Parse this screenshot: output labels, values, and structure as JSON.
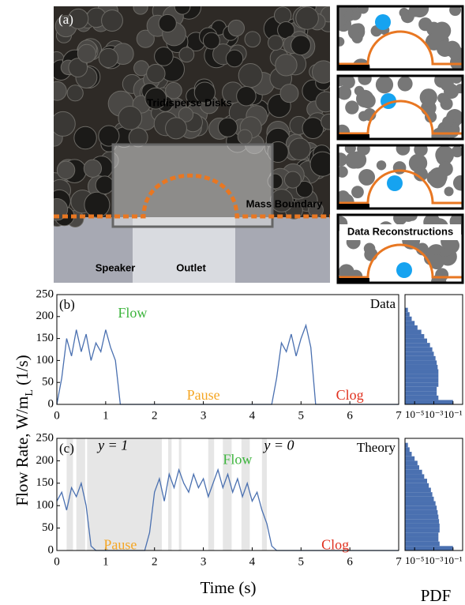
{
  "panel_a": {
    "label": "(a)",
    "labels": [
      "Tridisperse Disks",
      "Mass Boundary",
      "Speaker",
      "Outlet",
      "Data Reconstructions"
    ]
  },
  "y_label": {
    "main": "Flow Rate, W/m",
    "sub": "L",
    "unit": " (1/s)"
  },
  "x_label": "Time (s)",
  "pdf_label": "PDF",
  "chart_data": [
    {
      "type": "line",
      "panel_label": "(b)",
      "corner_label": "Data",
      "annotations": [
        {
          "text": "Flow",
          "color": "#3cb43c"
        },
        {
          "text": "Pause",
          "color": "#f5a623"
        },
        {
          "text": "Clog",
          "color": "#e0301e"
        }
      ],
      "x": [
        0,
        0.1,
        0.2,
        0.3,
        0.4,
        0.5,
        0.6,
        0.7,
        0.8,
        0.9,
        1,
        1.1,
        1.2,
        1.3,
        1.4,
        1.5,
        1.6,
        1.7,
        1.8,
        1.9,
        2,
        2.1,
        2.2,
        2.3,
        2.4,
        2.5,
        2.6,
        2.7,
        2.8,
        2.9,
        3,
        3.1,
        3.2,
        3.3,
        3.4,
        3.5,
        3.6,
        3.7,
        3.8,
        3.9,
        4,
        4.1,
        4.2,
        4.3,
        4.4,
        4.5,
        4.6,
        4.7,
        4.8,
        4.9,
        5,
        5.1,
        5.2,
        5.3,
        5.4,
        5.5,
        5.6,
        5.7,
        5.8,
        5.9,
        6,
        6.1,
        6.2,
        6.3,
        6.4,
        6.5,
        6.6,
        6.7,
        6.8,
        6.9,
        7
      ],
      "series": [
        {
          "color": "#4a70b0",
          "values": [
            0,
            60,
            150,
            110,
            170,
            120,
            160,
            100,
            140,
            120,
            170,
            130,
            100,
            0,
            0,
            0,
            0,
            0,
            0,
            0,
            0,
            0,
            0,
            0,
            0,
            0,
            0,
            0,
            0,
            0,
            0,
            0,
            0,
            0,
            0,
            0,
            0,
            0,
            0,
            0,
            0,
            0,
            0,
            0,
            0,
            60,
            140,
            120,
            160,
            110,
            150,
            180,
            130,
            0,
            0,
            0,
            0,
            0,
            0,
            0,
            0,
            0,
            0,
            0,
            0,
            0,
            0,
            0,
            0,
            0,
            0
          ]
        }
      ],
      "xlim": [
        0,
        7
      ],
      "ylim": [
        0,
        250
      ],
      "xticks": [
        0,
        1,
        2,
        3,
        4,
        5,
        6,
        7
      ],
      "yticks": [
        0,
        50,
        100,
        150,
        200,
        250
      ]
    },
    {
      "type": "line",
      "panel_label": "(c)",
      "corner_label": "Theory",
      "annotations": [
        {
          "text": "Flow",
          "color": "#3cb43c"
        },
        {
          "text": "Pause",
          "color": "#f5a623"
        },
        {
          "text": "Clog",
          "color": "#e0301e"
        },
        {
          "text": "y = 1",
          "color": "#000000"
        },
        {
          "text": "y = 0",
          "color": "#000000"
        }
      ],
      "shaded_spans": [
        [
          0.2,
          0.33
        ],
        [
          0.4,
          0.58
        ],
        [
          0.62,
          2.15
        ],
        [
          2.28,
          2.35
        ],
        [
          2.5,
          2.55
        ],
        [
          3.1,
          3.22
        ],
        [
          3.4,
          3.58
        ],
        [
          3.78,
          3.95
        ],
        [
          4.2,
          4.3
        ]
      ],
      "x": [
        0,
        0.1,
        0.2,
        0.3,
        0.4,
        0.5,
        0.6,
        0.7,
        0.8,
        0.9,
        1,
        1.1,
        1.2,
        1.3,
        1.4,
        1.5,
        1.6,
        1.7,
        1.8,
        1.9,
        2,
        2.1,
        2.2,
        2.3,
        2.4,
        2.5,
        2.6,
        2.7,
        2.8,
        2.9,
        3,
        3.1,
        3.2,
        3.3,
        3.4,
        3.5,
        3.6,
        3.7,
        3.8,
        3.9,
        4,
        4.1,
        4.2,
        4.3,
        4.4,
        4.5,
        4.6,
        4.7,
        4.8,
        4.9,
        5,
        5.1,
        5.2,
        5.3,
        5.4,
        5.5,
        5.6,
        5.7,
        5.8,
        5.9,
        6,
        6.1,
        6.2,
        6.3,
        6.4,
        6.5,
        6.6,
        6.7,
        6.8,
        6.9,
        7
      ],
      "series": [
        {
          "color": "#4a70b0",
          "values": [
            110,
            130,
            90,
            140,
            120,
            150,
            100,
            10,
            0,
            0,
            0,
            0,
            0,
            0,
            0,
            0,
            0,
            0,
            0,
            40,
            130,
            160,
            110,
            170,
            140,
            180,
            150,
            130,
            170,
            140,
            160,
            120,
            150,
            180,
            140,
            170,
            130,
            160,
            120,
            150,
            110,
            130,
            90,
            60,
            10,
            0,
            0,
            0,
            0,
            0,
            0,
            0,
            0,
            0,
            0,
            0,
            0,
            0,
            0,
            0,
            0,
            0,
            0,
            0,
            0,
            0,
            0,
            0,
            0,
            0,
            0
          ]
        }
      ],
      "xlim": [
        0,
        7
      ],
      "ylim": [
        0,
        250
      ],
      "xticks": [
        0,
        1,
        2,
        3,
        4,
        5,
        6,
        7
      ],
      "yticks": [
        0,
        50,
        100,
        150,
        200,
        250
      ]
    },
    {
      "type": "histogram",
      "color": "#4a70b0",
      "log_x": true,
      "bins": [
        0,
        10,
        20,
        30,
        40,
        50,
        60,
        70,
        80,
        90,
        100,
        110,
        120,
        130,
        140,
        150,
        160,
        170,
        180,
        190,
        200,
        210,
        220,
        230,
        240,
        250
      ],
      "values": [
        0.1,
        0.003,
        0.002,
        0.002,
        0.003,
        0.003,
        0.003,
        0.003,
        0.0025,
        0.002,
        0.0015,
        0.001,
        0.0007,
        0.0004,
        0.0002,
        0.0001,
        5e-05,
        2e-05,
        1e-05,
        5e-06,
        3e-06,
        2e-06,
        null,
        null,
        null
      ],
      "xlim": [
        1e-06,
        1
      ],
      "ylim": [
        0,
        250
      ],
      "xticks": [
        {
          "value": 1e-05,
          "label": "10⁻⁵"
        },
        {
          "value": 0.001,
          "label": "10⁻³"
        },
        {
          "value": 0.1,
          "label": "10⁻¹"
        }
      ]
    },
    {
      "type": "histogram",
      "color": "#4a70b0",
      "log_x": true,
      "bins": [
        0,
        10,
        20,
        30,
        40,
        50,
        60,
        70,
        80,
        90,
        100,
        110,
        120,
        130,
        140,
        150,
        160,
        170,
        180,
        190,
        200,
        210,
        220,
        230,
        240,
        250
      ],
      "values": [
        0.1,
        0.004,
        0.003,
        0.003,
        0.004,
        0.004,
        0.0035,
        0.003,
        0.0025,
        0.002,
        0.0015,
        0.001,
        0.0007,
        0.0005,
        0.0003,
        0.0002,
        0.0001,
        6e-05,
        3e-05,
        2e-05,
        1e-05,
        5e-06,
        3e-06,
        2e-06,
        null
      ],
      "xlim": [
        1e-06,
        1
      ],
      "ylim": [
        0,
        250
      ],
      "xticks": [
        {
          "value": 1e-05,
          "label": "10⁻⁵"
        },
        {
          "value": 0.001,
          "label": "10⁻³"
        },
        {
          "value": 0.1,
          "label": "10⁻¹"
        }
      ]
    }
  ]
}
